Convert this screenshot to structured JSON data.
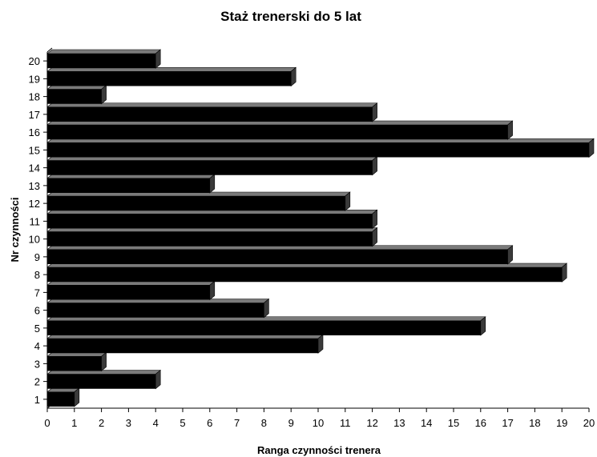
{
  "chart_data": {
    "type": "bar",
    "orientation": "horizontal",
    "style": "3d",
    "title": "Staż trenerski do 5 lat",
    "xlabel": "Ranga czynności trenera",
    "ylabel": "Nr czynności",
    "categories": [
      "1",
      "2",
      "3",
      "4",
      "5",
      "6",
      "7",
      "8",
      "9",
      "10",
      "11",
      "12",
      "13",
      "14",
      "15",
      "16",
      "17",
      "18",
      "19",
      "20"
    ],
    "values": [
      1,
      4,
      2,
      10,
      16,
      8,
      6,
      19,
      17,
      12,
      12,
      11,
      6,
      12,
      20,
      17,
      12,
      2,
      9,
      4
    ],
    "xlim": [
      0,
      20
    ],
    "xticks": [
      "0",
      "1",
      "2",
      "3",
      "4",
      "5",
      "6",
      "7",
      "8",
      "9",
      "10",
      "11",
      "12",
      "13",
      "14",
      "15",
      "16",
      "17",
      "18",
      "19",
      "20"
    ],
    "grid": false,
    "legend": "none",
    "colors": {
      "bar": "#000000",
      "background": "#ffffff",
      "axis": "#000000"
    }
  }
}
